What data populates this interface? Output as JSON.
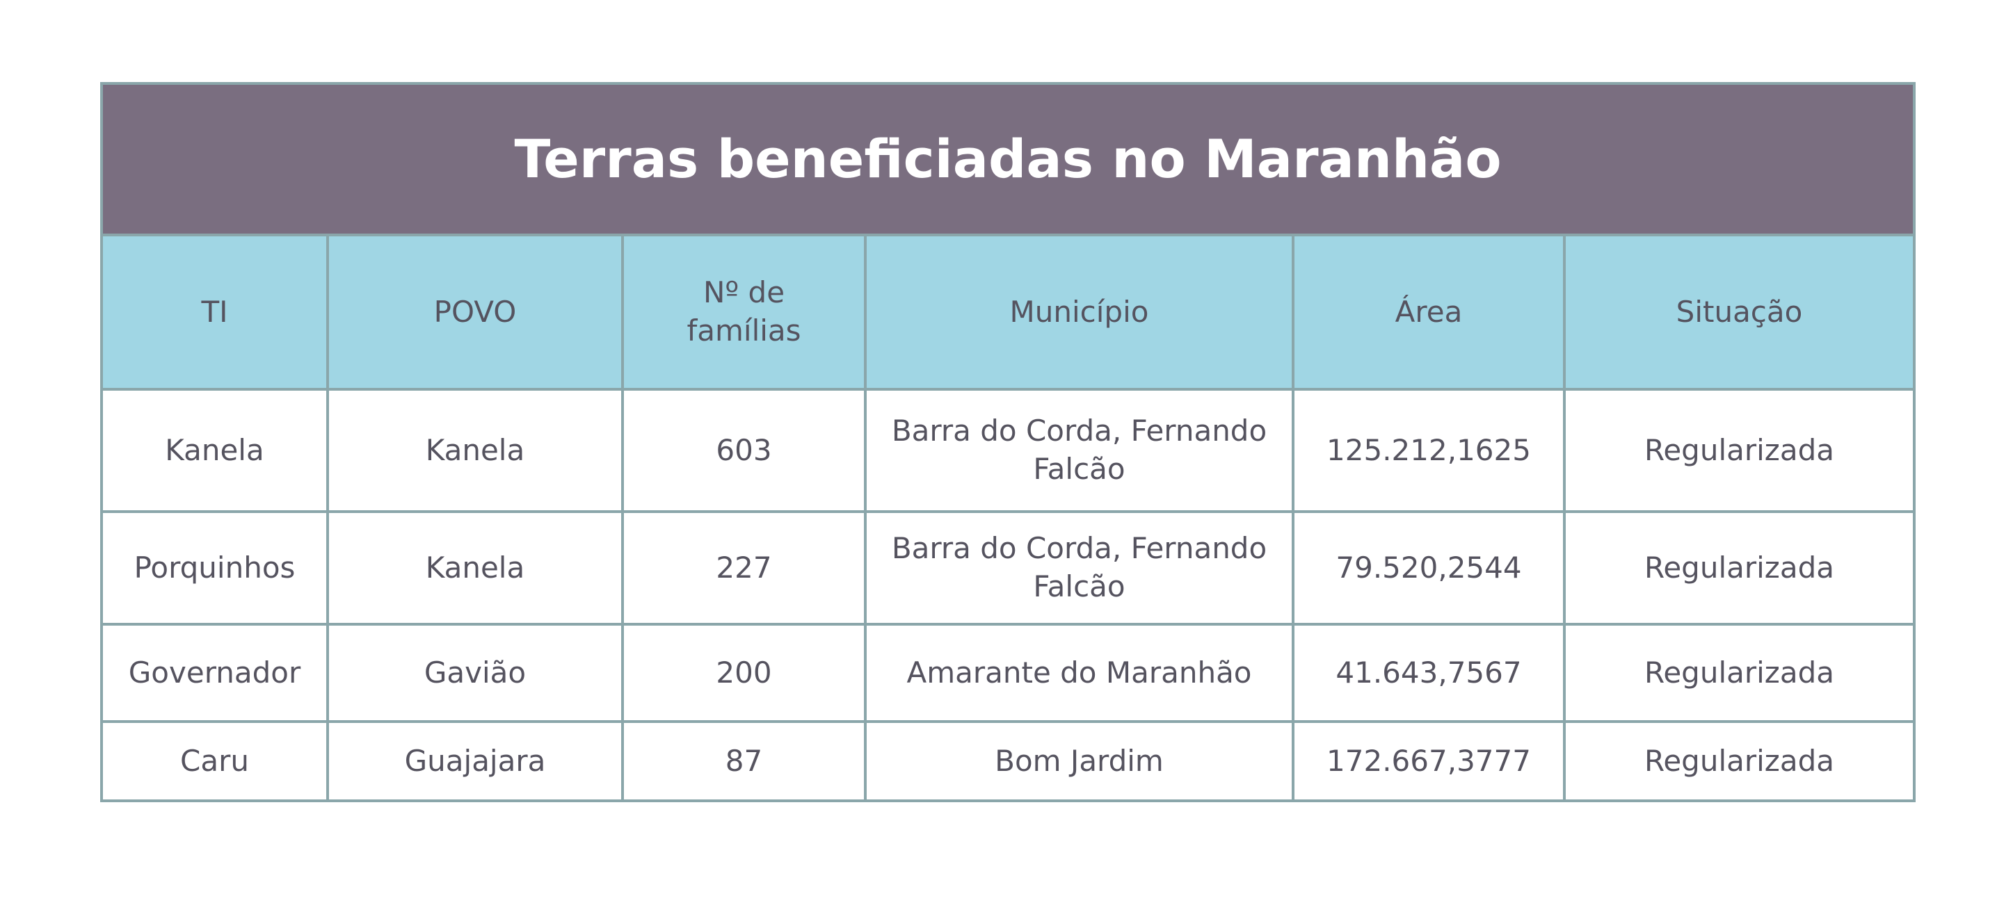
{
  "title": "Terras beneficiadas no Maranhão",
  "columns": [
    "TI",
    "POVO",
    "Nº de famílias",
    "Município",
    "Área",
    "Situação"
  ],
  "rows": [
    [
      "Kanela",
      "Kanela",
      "603",
      "Barra do Corda, Fernando Falcão",
      "125.212,1625",
      "Regularizada"
    ],
    [
      "Porquinhos",
      "Kanela",
      "227",
      "Barra do Corda, Fernando Falcão",
      "79.520,2544",
      "Regularizada"
    ],
    [
      "Governador",
      "Gavião",
      "200",
      "Amarante do Maranhão",
      "41.643,7567",
      "Regularizada"
    ],
    [
      "Caru",
      "Guajajara",
      "87",
      "Bom Jardim",
      "172.667,3777",
      "Regularizada"
    ]
  ],
  "colors": {
    "title_bg": "#7a6e80",
    "header_bg": "#a0d6e4",
    "border": "#8aa6aa",
    "text": "#55535f"
  }
}
